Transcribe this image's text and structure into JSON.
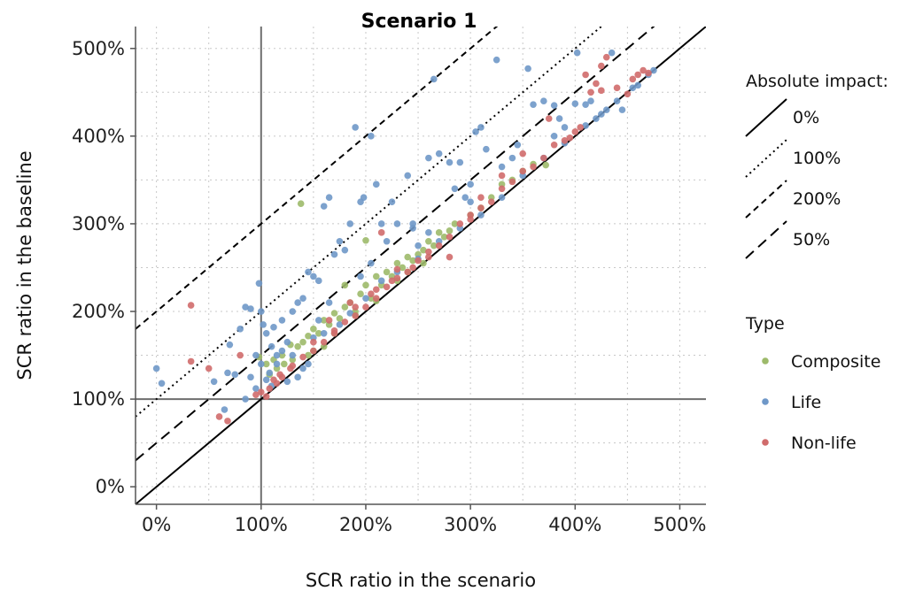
{
  "chart_data": {
    "type": "scatter",
    "title": "Scenario 1",
    "xlabel": "SCR ratio in the scenario",
    "ylabel": "SCR ratio in the baseline",
    "xlim": [
      -20,
      525
    ],
    "ylim": [
      -20,
      525
    ],
    "x_ticks": [
      0,
      100,
      200,
      300,
      400,
      500
    ],
    "y_ticks": [
      0,
      100,
      200,
      300,
      400,
      500
    ],
    "x_tick_labels": [
      "0%",
      "100%",
      "200%",
      "300%",
      "400%",
      "500%"
    ],
    "y_tick_labels": [
      "0%",
      "100%",
      "200%",
      "300%",
      "400%",
      "500%"
    ],
    "grid": "dotted",
    "reference_lines": [
      {
        "type": "vertical",
        "x": 100
      },
      {
        "type": "horizontal",
        "y": 100
      }
    ],
    "impact_lines": [
      {
        "label": "0%",
        "offset": 0,
        "dash": "solid"
      },
      {
        "label": "100%",
        "offset": 100,
        "dash": "dotted"
      },
      {
        "label": "200%",
        "offset": 200,
        "dash": "dashed"
      },
      {
        "label": "50%",
        "offset": 50,
        "dash": "longdash"
      }
    ],
    "legend": {
      "placement": "right",
      "impact_title": "Absolute impact:",
      "type_title": "Type"
    },
    "series": [
      {
        "name": "Composite",
        "color": "#9dba6a",
        "points": [
          [
            98,
            148
          ],
          [
            105,
            140
          ],
          [
            112,
            145
          ],
          [
            120,
            150
          ],
          [
            128,
            162
          ],
          [
            135,
            160
          ],
          [
            140,
            165
          ],
          [
            145,
            172
          ],
          [
            150,
            180
          ],
          [
            155,
            175
          ],
          [
            160,
            190
          ],
          [
            165,
            185
          ],
          [
            170,
            198
          ],
          [
            175,
            192
          ],
          [
            180,
            205
          ],
          [
            185,
            210
          ],
          [
            190,
            200
          ],
          [
            195,
            220
          ],
          [
            200,
            230
          ],
          [
            205,
            215
          ],
          [
            210,
            240
          ],
          [
            215,
            230
          ],
          [
            220,
            245
          ],
          [
            225,
            240
          ],
          [
            230,
            255
          ],
          [
            235,
            250
          ],
          [
            240,
            262
          ],
          [
            245,
            258
          ],
          [
            250,
            265
          ],
          [
            255,
            270
          ],
          [
            260,
            280
          ],
          [
            265,
            275
          ],
          [
            270,
            290
          ],
          [
            275,
            285
          ],
          [
            280,
            292
          ],
          [
            285,
            300
          ],
          [
            300,
            310
          ],
          [
            310,
            318
          ],
          [
            320,
            330
          ],
          [
            330,
            345
          ],
          [
            340,
            350
          ],
          [
            350,
            360
          ],
          [
            360,
            368
          ],
          [
            372,
            367
          ],
          [
            138,
            323
          ],
          [
            200,
            281
          ],
          [
            180,
            230
          ],
          [
            160,
            160
          ],
          [
            145,
            150
          ],
          [
            130,
            145
          ],
          [
            115,
            135
          ],
          [
            108,
            128
          ],
          [
            122,
            140
          ],
          [
            190,
            196
          ],
          [
            210,
            212
          ],
          [
            240,
            245
          ],
          [
            255,
            255
          ],
          [
            230,
            235
          ],
          [
            170,
            175
          ],
          [
            150,
            155
          ]
        ]
      },
      {
        "name": "Life",
        "color": "#6f98c8",
        "points": [
          [
            0,
            135
          ],
          [
            5,
            118
          ],
          [
            55,
            120
          ],
          [
            65,
            88
          ],
          [
            68,
            130
          ],
          [
            70,
            162
          ],
          [
            75,
            128
          ],
          [
            80,
            180
          ],
          [
            85,
            205
          ],
          [
            90,
            203
          ],
          [
            95,
            150
          ],
          [
            98,
            232
          ],
          [
            100,
            200
          ],
          [
            102,
            185
          ],
          [
            105,
            175
          ],
          [
            108,
            130
          ],
          [
            110,
            160
          ],
          [
            112,
            182
          ],
          [
            115,
            150
          ],
          [
            120,
            190
          ],
          [
            125,
            165
          ],
          [
            130,
            200
          ],
          [
            135,
            210
          ],
          [
            140,
            215
          ],
          [
            145,
            245
          ],
          [
            150,
            240
          ],
          [
            155,
            235
          ],
          [
            160,
            320
          ],
          [
            165,
            330
          ],
          [
            170,
            265
          ],
          [
            175,
            280
          ],
          [
            180,
            270
          ],
          [
            185,
            300
          ],
          [
            190,
            410
          ],
          [
            195,
            325
          ],
          [
            198,
            330
          ],
          [
            205,
            400
          ],
          [
            210,
            345
          ],
          [
            215,
            300
          ],
          [
            220,
            280
          ],
          [
            225,
            325
          ],
          [
            230,
            300
          ],
          [
            240,
            355
          ],
          [
            245,
            300
          ],
          [
            250,
            275
          ],
          [
            260,
            375
          ],
          [
            265,
            465
          ],
          [
            270,
            380
          ],
          [
            280,
            370
          ],
          [
            285,
            340
          ],
          [
            290,
            370
          ],
          [
            295,
            330
          ],
          [
            300,
            325
          ],
          [
            305,
            405
          ],
          [
            310,
            410
          ],
          [
            315,
            385
          ],
          [
            325,
            487
          ],
          [
            330,
            365
          ],
          [
            345,
            390
          ],
          [
            355,
            477
          ],
          [
            360,
            436
          ],
          [
            370,
            440
          ],
          [
            380,
            435
          ],
          [
            385,
            420
          ],
          [
            390,
            410
          ],
          [
            400,
            437
          ],
          [
            402,
            495
          ],
          [
            410,
            436
          ],
          [
            415,
            440
          ],
          [
            420,
            420
          ],
          [
            425,
            425
          ],
          [
            430,
            430
          ],
          [
            435,
            495
          ],
          [
            440,
            440
          ],
          [
            445,
            430
          ],
          [
            455,
            455
          ],
          [
            460,
            458
          ],
          [
            470,
            470
          ],
          [
            475,
            475
          ],
          [
            150,
            170
          ],
          [
            140,
            135
          ],
          [
            130,
            150
          ],
          [
            115,
            140
          ],
          [
            125,
            120
          ],
          [
            135,
            125
          ],
          [
            145,
            140
          ],
          [
            160,
            175
          ],
          [
            175,
            185
          ],
          [
            185,
            198
          ],
          [
            200,
            215
          ],
          [
            215,
            235
          ],
          [
            230,
            245
          ],
          [
            250,
            260
          ],
          [
            270,
            280
          ],
          [
            290,
            295
          ],
          [
            310,
            310
          ],
          [
            330,
            330
          ],
          [
            350,
            355
          ],
          [
            370,
            375
          ],
          [
            390,
            392
          ],
          [
            410,
            412
          ],
          [
            120,
            155
          ],
          [
            155,
            190
          ],
          [
            195,
            240
          ],
          [
            260,
            290
          ],
          [
            300,
            345
          ],
          [
            340,
            375
          ],
          [
            380,
            400
          ],
          [
            110,
            115
          ],
          [
            100,
            140
          ],
          [
            90,
            125
          ],
          [
            85,
            100
          ],
          [
            95,
            112
          ],
          [
            105,
            122
          ],
          [
            165,
            210
          ],
          [
            205,
            255
          ],
          [
            245,
            295
          ]
        ]
      },
      {
        "name": "Non-life",
        "color": "#d06b6b",
        "points": [
          [
            33,
            207
          ],
          [
            33,
            143
          ],
          [
            50,
            135
          ],
          [
            60,
            80
          ],
          [
            68,
            75
          ],
          [
            80,
            150
          ],
          [
            95,
            105
          ],
          [
            100,
            108
          ],
          [
            105,
            103
          ],
          [
            115,
            118
          ],
          [
            120,
            125
          ],
          [
            130,
            138
          ],
          [
            140,
            148
          ],
          [
            150,
            155
          ],
          [
            160,
            165
          ],
          [
            170,
            175
          ],
          [
            180,
            188
          ],
          [
            190,
            195
          ],
          [
            200,
            205
          ],
          [
            210,
            215
          ],
          [
            215,
            290
          ],
          [
            220,
            228
          ],
          [
            230,
            238
          ],
          [
            240,
            245
          ],
          [
            250,
            258
          ],
          [
            260,
            268
          ],
          [
            270,
            275
          ],
          [
            280,
            262
          ],
          [
            290,
            300
          ],
          [
            300,
            305
          ],
          [
            310,
            318
          ],
          [
            320,
            325
          ],
          [
            330,
            340
          ],
          [
            340,
            348
          ],
          [
            350,
            380
          ],
          [
            360,
            365
          ],
          [
            370,
            375
          ],
          [
            375,
            420
          ],
          [
            380,
            390
          ],
          [
            390,
            395
          ],
          [
            400,
            405
          ],
          [
            410,
            470
          ],
          [
            415,
            450
          ],
          [
            420,
            460
          ],
          [
            425,
            452
          ],
          [
            430,
            490
          ],
          [
            440,
            455
          ],
          [
            450,
            448
          ],
          [
            455,
            465
          ],
          [
            460,
            470
          ],
          [
            465,
            475
          ],
          [
            470,
            472
          ],
          [
            165,
            190
          ],
          [
            185,
            210
          ],
          [
            205,
            220
          ],
          [
            225,
            235
          ],
          [
            245,
            250
          ],
          [
            260,
            262
          ],
          [
            280,
            285
          ],
          [
            300,
            310
          ],
          [
            310,
            330
          ],
          [
            330,
            355
          ],
          [
            350,
            360
          ],
          [
            395,
            398
          ],
          [
            405,
            410
          ],
          [
            425,
            480
          ],
          [
            128,
            135
          ],
          [
            118,
            128
          ],
          [
            112,
            122
          ],
          [
            108,
            112
          ],
          [
            150,
            165
          ],
          [
            170,
            178
          ],
          [
            190,
            205
          ],
          [
            210,
            225
          ],
          [
            230,
            248
          ]
        ]
      }
    ]
  }
}
